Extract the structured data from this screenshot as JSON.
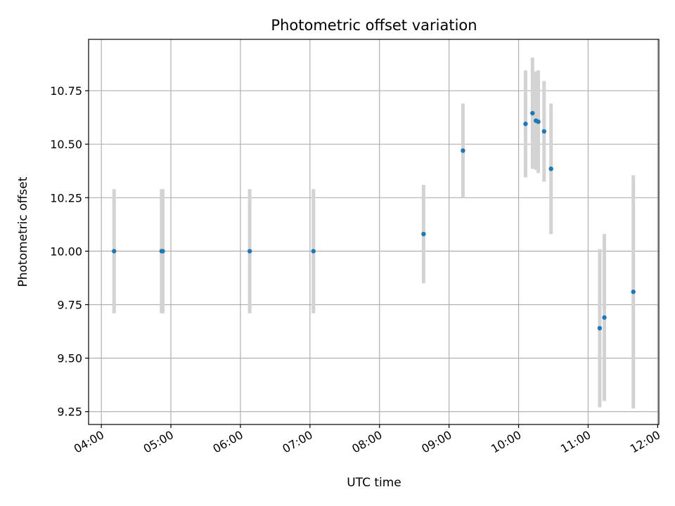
{
  "chart_data": {
    "type": "scatter",
    "title": "Photometric offset variation",
    "xlabel": "UTC time",
    "ylabel": "Photometric offset",
    "x_ticks": [
      "04:00",
      "05:00",
      "06:00",
      "07:00",
      "08:00",
      "09:00",
      "10:00",
      "11:00",
      "12:00"
    ],
    "y_ticks": [
      "9.25",
      "9.50",
      "9.75",
      "10.00",
      "10.25",
      "10.50",
      "10.75"
    ],
    "xlim": [
      "03:49",
      "12:01"
    ],
    "ylim": [
      9.19,
      10.99
    ],
    "grid": true,
    "colors": {
      "point": "#1f77b4",
      "errorbar": "#d3d3d3",
      "grid": "#b0b0b0"
    },
    "series": [
      {
        "points": [
          {
            "time": "04:11",
            "value": 10.0,
            "error": 0.29
          },
          {
            "time": "04:52",
            "value": 10.0,
            "error": 0.29
          },
          {
            "time": "04:53",
            "value": 10.0,
            "error": 0.29
          },
          {
            "time": "06:08",
            "value": 10.0,
            "error": 0.29
          },
          {
            "time": "07:03",
            "value": 10.0,
            "error": 0.29
          },
          {
            "time": "08:38",
            "value": 10.08,
            "error": 0.23
          },
          {
            "time": "09:12",
            "value": 10.47,
            "error": 0.22
          },
          {
            "time": "10:06",
            "value": 10.595,
            "error": 0.25
          },
          {
            "time": "10:12",
            "value": 10.645,
            "error": 0.26
          },
          {
            "time": "10:15",
            "value": 10.61,
            "error": 0.23
          },
          {
            "time": "10:17",
            "value": 10.605,
            "error": 0.24
          },
          {
            "time": "10:22",
            "value": 10.56,
            "error": 0.235
          },
          {
            "time": "10:28",
            "value": 10.385,
            "error": 0.305
          },
          {
            "time": "11:10",
            "value": 9.64,
            "error": 0.37
          },
          {
            "time": "11:14",
            "value": 9.69,
            "error": 0.39
          },
          {
            "time": "11:39",
            "value": 9.81,
            "error": 0.545
          }
        ]
      }
    ]
  }
}
